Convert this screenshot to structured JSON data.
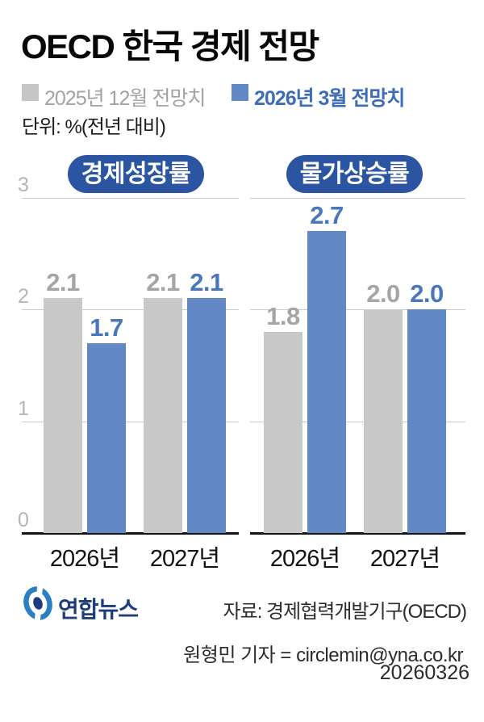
{
  "header": {
    "title": "OECD 한국 경제 전망",
    "unit_label": "단위: %(전년 대비)"
  },
  "legend": {
    "items": [
      {
        "label": "2025년 12월 전망치",
        "swatch_color": "#c6c6c6",
        "text_color": "#a2a2a2"
      },
      {
        "label": "2026년 3월 전망치",
        "swatch_color": "#6288c6",
        "text_color": "#3e6cb7"
      }
    ]
  },
  "chart_data": {
    "type": "bar",
    "title": "OECD 한국 경제 전망",
    "unit": "%(전년 대비)",
    "categories": [
      "2026년",
      "2027년"
    ],
    "ylim": [
      0,
      3
    ],
    "yticks": [
      0,
      1,
      2,
      3
    ],
    "grid": true,
    "legend_position": "top",
    "value_labels": true,
    "panels": [
      {
        "title": "경제성장률",
        "series": [
          {
            "name": "2025년 12월 전망치",
            "values": [
              2.1,
              2.1
            ]
          },
          {
            "name": "2026년 3월 전망치",
            "values": [
              1.7,
              2.1
            ]
          }
        ]
      },
      {
        "title": "물가상승률",
        "series": [
          {
            "name": "2025년 12월 전망치",
            "values": [
              1.8,
              2.0
            ]
          },
          {
            "name": "2026년 3월 전망치",
            "values": [
              2.7,
              2.0
            ]
          }
        ]
      }
    ]
  },
  "colors": {
    "bar_gray": "#c8c8c8",
    "bar_blue": "#6288c6",
    "value_gray": "#a5a5a5",
    "value_blue": "#4a76bc",
    "pill_bg": "#2b55a0",
    "pill_text": "#ffffff",
    "tick_text": "#b5b5b5",
    "gridline": "#c9c9c9",
    "axis": "#141414",
    "logo_blue": "#2a7fc3",
    "logo_navy": "#1e3d7b"
  },
  "footer": {
    "logo_name": "연합뉴스",
    "source": "자료: 경제협력개발기구(OECD)",
    "byline": "원형민 기자 = circlemin@yna.co.kr",
    "date": "20260326"
  }
}
